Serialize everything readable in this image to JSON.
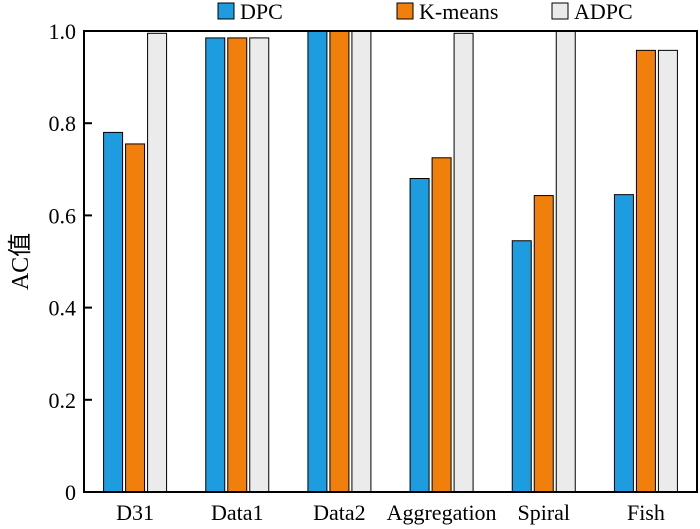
{
  "chart_data": {
    "type": "bar",
    "categories": [
      "D31",
      "Data1",
      "Data2",
      "Aggregation",
      "Spiral",
      "Fish"
    ],
    "series": [
      {
        "name": "DPC",
        "color": "#1e9ce0",
        "values": [
          0.78,
          0.985,
          1.0,
          0.68,
          0.545,
          0.645
        ]
      },
      {
        "name": "K-means",
        "color": "#f07f0c",
        "values": [
          0.755,
          0.985,
          1.0,
          0.725,
          0.643,
          0.958
        ]
      },
      {
        "name": "ADPC",
        "color": "#ebebeb",
        "values": [
          0.995,
          0.985,
          1.0,
          0.995,
          1.0,
          0.958
        ]
      }
    ],
    "title": "",
    "xlabel": "",
    "ylabel": "AC值",
    "ylim": [
      0,
      1.0
    ],
    "yticks": [
      "0",
      "0.2",
      "0.4",
      "0.6",
      "0.8",
      "1.0"
    ],
    "grid": false,
    "legend_position": "top"
  }
}
